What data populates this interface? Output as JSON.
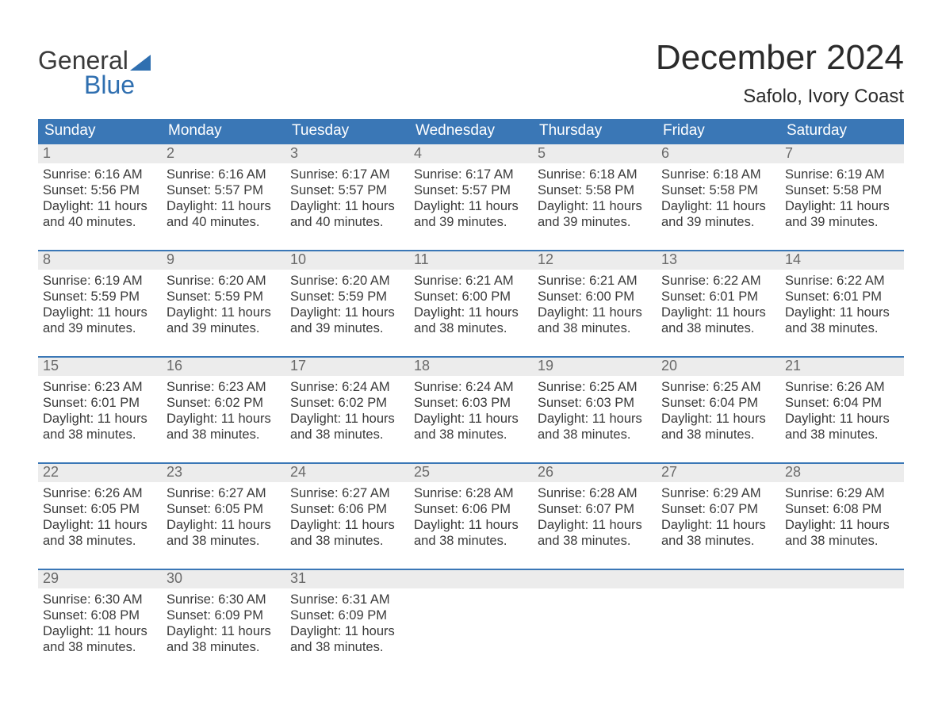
{
  "colors": {
    "header_bg": "#3a77b6",
    "header_text": "#ffffff",
    "daynum_bg": "#ececec",
    "daynum_text": "#6a6a6a",
    "body_text": "#3a3a3a",
    "logo_blue": "#2f6fb0",
    "row_border": "#3a77b6",
    "page_bg": "#ffffff"
  },
  "typography": {
    "month_title_size_pt": 33,
    "location_size_pt": 18,
    "weekday_size_pt": 14,
    "daynum_size_pt": 13,
    "cell_text_size_pt": 12
  },
  "logo": {
    "line1": "General",
    "line2": "Blue"
  },
  "title": {
    "month": "December 2024",
    "location": "Safolo, Ivory Coast"
  },
  "weekdays": [
    "Sunday",
    "Monday",
    "Tuesday",
    "Wednesday",
    "Thursday",
    "Friday",
    "Saturday"
  ],
  "calendar": {
    "columns": 7,
    "weeks": [
      {
        "days": [
          {
            "num": "1",
            "sunrise": "Sunrise: 6:16 AM",
            "sunset": "Sunset: 5:56 PM",
            "day1": "Daylight: 11 hours",
            "day2": "and 40 minutes."
          },
          {
            "num": "2",
            "sunrise": "Sunrise: 6:16 AM",
            "sunset": "Sunset: 5:57 PM",
            "day1": "Daylight: 11 hours",
            "day2": "and 40 minutes."
          },
          {
            "num": "3",
            "sunrise": "Sunrise: 6:17 AM",
            "sunset": "Sunset: 5:57 PM",
            "day1": "Daylight: 11 hours",
            "day2": "and 40 minutes."
          },
          {
            "num": "4",
            "sunrise": "Sunrise: 6:17 AM",
            "sunset": "Sunset: 5:57 PM",
            "day1": "Daylight: 11 hours",
            "day2": "and 39 minutes."
          },
          {
            "num": "5",
            "sunrise": "Sunrise: 6:18 AM",
            "sunset": "Sunset: 5:58 PM",
            "day1": "Daylight: 11 hours",
            "day2": "and 39 minutes."
          },
          {
            "num": "6",
            "sunrise": "Sunrise: 6:18 AM",
            "sunset": "Sunset: 5:58 PM",
            "day1": "Daylight: 11 hours",
            "day2": "and 39 minutes."
          },
          {
            "num": "7",
            "sunrise": "Sunrise: 6:19 AM",
            "sunset": "Sunset: 5:58 PM",
            "day1": "Daylight: 11 hours",
            "day2": "and 39 minutes."
          }
        ]
      },
      {
        "days": [
          {
            "num": "8",
            "sunrise": "Sunrise: 6:19 AM",
            "sunset": "Sunset: 5:59 PM",
            "day1": "Daylight: 11 hours",
            "day2": "and 39 minutes."
          },
          {
            "num": "9",
            "sunrise": "Sunrise: 6:20 AM",
            "sunset": "Sunset: 5:59 PM",
            "day1": "Daylight: 11 hours",
            "day2": "and 39 minutes."
          },
          {
            "num": "10",
            "sunrise": "Sunrise: 6:20 AM",
            "sunset": "Sunset: 5:59 PM",
            "day1": "Daylight: 11 hours",
            "day2": "and 39 minutes."
          },
          {
            "num": "11",
            "sunrise": "Sunrise: 6:21 AM",
            "sunset": "Sunset: 6:00 PM",
            "day1": "Daylight: 11 hours",
            "day2": "and 38 minutes."
          },
          {
            "num": "12",
            "sunrise": "Sunrise: 6:21 AM",
            "sunset": "Sunset: 6:00 PM",
            "day1": "Daylight: 11 hours",
            "day2": "and 38 minutes."
          },
          {
            "num": "13",
            "sunrise": "Sunrise: 6:22 AM",
            "sunset": "Sunset: 6:01 PM",
            "day1": "Daylight: 11 hours",
            "day2": "and 38 minutes."
          },
          {
            "num": "14",
            "sunrise": "Sunrise: 6:22 AM",
            "sunset": "Sunset: 6:01 PM",
            "day1": "Daylight: 11 hours",
            "day2": "and 38 minutes."
          }
        ]
      },
      {
        "days": [
          {
            "num": "15",
            "sunrise": "Sunrise: 6:23 AM",
            "sunset": "Sunset: 6:01 PM",
            "day1": "Daylight: 11 hours",
            "day2": "and 38 minutes."
          },
          {
            "num": "16",
            "sunrise": "Sunrise: 6:23 AM",
            "sunset": "Sunset: 6:02 PM",
            "day1": "Daylight: 11 hours",
            "day2": "and 38 minutes."
          },
          {
            "num": "17",
            "sunrise": "Sunrise: 6:24 AM",
            "sunset": "Sunset: 6:02 PM",
            "day1": "Daylight: 11 hours",
            "day2": "and 38 minutes."
          },
          {
            "num": "18",
            "sunrise": "Sunrise: 6:24 AM",
            "sunset": "Sunset: 6:03 PM",
            "day1": "Daylight: 11 hours",
            "day2": "and 38 minutes."
          },
          {
            "num": "19",
            "sunrise": "Sunrise: 6:25 AM",
            "sunset": "Sunset: 6:03 PM",
            "day1": "Daylight: 11 hours",
            "day2": "and 38 minutes."
          },
          {
            "num": "20",
            "sunrise": "Sunrise: 6:25 AM",
            "sunset": "Sunset: 6:04 PM",
            "day1": "Daylight: 11 hours",
            "day2": "and 38 minutes."
          },
          {
            "num": "21",
            "sunrise": "Sunrise: 6:26 AM",
            "sunset": "Sunset: 6:04 PM",
            "day1": "Daylight: 11 hours",
            "day2": "and 38 minutes."
          }
        ]
      },
      {
        "days": [
          {
            "num": "22",
            "sunrise": "Sunrise: 6:26 AM",
            "sunset": "Sunset: 6:05 PM",
            "day1": "Daylight: 11 hours",
            "day2": "and 38 minutes."
          },
          {
            "num": "23",
            "sunrise": "Sunrise: 6:27 AM",
            "sunset": "Sunset: 6:05 PM",
            "day1": "Daylight: 11 hours",
            "day2": "and 38 minutes."
          },
          {
            "num": "24",
            "sunrise": "Sunrise: 6:27 AM",
            "sunset": "Sunset: 6:06 PM",
            "day1": "Daylight: 11 hours",
            "day2": "and 38 minutes."
          },
          {
            "num": "25",
            "sunrise": "Sunrise: 6:28 AM",
            "sunset": "Sunset: 6:06 PM",
            "day1": "Daylight: 11 hours",
            "day2": "and 38 minutes."
          },
          {
            "num": "26",
            "sunrise": "Sunrise: 6:28 AM",
            "sunset": "Sunset: 6:07 PM",
            "day1": "Daylight: 11 hours",
            "day2": "and 38 minutes."
          },
          {
            "num": "27",
            "sunrise": "Sunrise: 6:29 AM",
            "sunset": "Sunset: 6:07 PM",
            "day1": "Daylight: 11 hours",
            "day2": "and 38 minutes."
          },
          {
            "num": "28",
            "sunrise": "Sunrise: 6:29 AM",
            "sunset": "Sunset: 6:08 PM",
            "day1": "Daylight: 11 hours",
            "day2": "and 38 minutes."
          }
        ]
      },
      {
        "days": [
          {
            "num": "29",
            "sunrise": "Sunrise: 6:30 AM",
            "sunset": "Sunset: 6:08 PM",
            "day1": "Daylight: 11 hours",
            "day2": "and 38 minutes."
          },
          {
            "num": "30",
            "sunrise": "Sunrise: 6:30 AM",
            "sunset": "Sunset: 6:09 PM",
            "day1": "Daylight: 11 hours",
            "day2": "and 38 minutes."
          },
          {
            "num": "31",
            "sunrise": "Sunrise: 6:31 AM",
            "sunset": "Sunset: 6:09 PM",
            "day1": "Daylight: 11 hours",
            "day2": "and 38 minutes."
          },
          null,
          null,
          null,
          null
        ]
      }
    ]
  }
}
